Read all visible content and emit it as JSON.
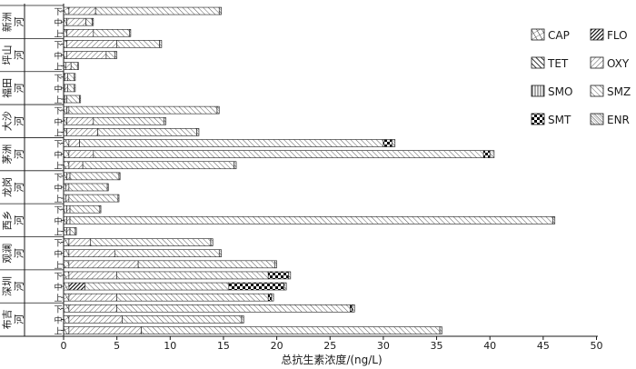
{
  "chart_data": {
    "type": "bar",
    "orientation": "horizontal-stacked",
    "title": "",
    "xlabel": "总抗生素浓度/(ng/L)",
    "ylabel": "",
    "xlim": [
      0,
      50
    ],
    "x_ticks": [
      0,
      5,
      10,
      15,
      20,
      25,
      30,
      35,
      40,
      45,
      50
    ],
    "grid": false,
    "legend_position": "right",
    "legend": [
      "CAP",
      "FLO",
      "TET",
      "OXY",
      "SMO",
      "SMZ",
      "SMT",
      "ENR"
    ],
    "rivers": [
      {
        "name": "新洲河",
        "label_lines": [
          "新洲",
          "河"
        ],
        "sites": [
          "下",
          "中",
          "上"
        ]
      },
      {
        "name": "坪山河",
        "label_lines": [
          "坪山",
          "河"
        ],
        "sites": [
          "下",
          "中",
          "上"
        ]
      },
      {
        "name": "福田河",
        "label_lines": [
          "福田",
          "河"
        ],
        "sites": [
          "下",
          "中",
          "上"
        ]
      },
      {
        "name": "大沙河",
        "label_lines": [
          "大沙",
          "河"
        ],
        "sites": [
          "下",
          "中",
          "上"
        ]
      },
      {
        "name": "茅洲河",
        "label_lines": [
          "茅洲",
          "河"
        ],
        "sites": [
          "下",
          "中",
          "上"
        ]
      },
      {
        "name": "龙岗河",
        "label_lines": [
          "龙岗",
          "河"
        ],
        "sites": [
          "下",
          "中",
          "上"
        ]
      },
      {
        "name": "西乡河",
        "label_lines": [
          "西乡",
          "河"
        ],
        "sites": [
          "下",
          "中",
          "上"
        ]
      },
      {
        "name": "观澜河",
        "label_lines": [
          "观澜",
          "河"
        ],
        "sites": [
          "下",
          "中",
          "上"
        ]
      },
      {
        "name": "深圳河",
        "label_lines": [
          "深圳",
          "河"
        ],
        "sites": [
          "下",
          "中",
          "上"
        ]
      },
      {
        "name": "布吉河",
        "label_lines": [
          "布吉",
          "河"
        ],
        "sites": [
          "下",
          "中",
          "上"
        ]
      }
    ],
    "series": [
      {
        "name": "CAP",
        "values": [
          0.5,
          0.3,
          0.3,
          0.3,
          0.3,
          0.2,
          0.1,
          0.1,
          0.1,
          0.3,
          0.3,
          0.3,
          0.5,
          0.5,
          0.5,
          0.3,
          0.2,
          0.2,
          0.3,
          0.3,
          0.3,
          0.5,
          0.5,
          0.5,
          0.5,
          0.5,
          0.5,
          0.5,
          0.5,
          0.5
        ]
      },
      {
        "name": "FLO",
        "values": [
          0,
          0,
          0,
          0,
          0,
          0,
          0,
          0,
          0,
          0,
          0,
          0,
          0,
          0,
          0,
          0,
          0,
          0,
          0,
          0,
          0,
          0,
          0,
          0,
          0,
          1.5,
          0,
          0,
          0,
          0
        ]
      },
      {
        "name": "TET",
        "values": [
          0,
          0,
          0,
          0,
          0,
          0,
          0,
          0,
          0,
          0,
          0,
          0,
          0,
          0,
          0,
          0,
          0,
          0,
          0,
          0,
          0,
          0,
          0,
          0,
          0,
          0,
          0,
          0,
          0,
          0
        ]
      },
      {
        "name": "OXY",
        "values": [
          2.5,
          1.8,
          2.5,
          4.7,
          3.7,
          0.5,
          0.3,
          0.3,
          0.2,
          0.2,
          2.5,
          2.9,
          1.0,
          2.3,
          1.3,
          0.3,
          0.3,
          0.3,
          0.3,
          0.3,
          0.3,
          2.0,
          4.3,
          6.5,
          4.5,
          0,
          4.5,
          4.5,
          5.0,
          6.8
        ]
      },
      {
        "name": "SMO",
        "values": [
          0,
          0,
          0,
          0,
          0,
          0,
          0,
          0,
          0,
          0,
          0,
          0,
          0,
          0,
          0,
          0,
          0,
          0,
          0,
          0,
          0,
          0,
          0,
          0,
          0,
          0,
          0,
          0,
          0,
          0
        ]
      },
      {
        "name": "SMZ",
        "values": [
          11.6,
          0.6,
          3.4,
          4.0,
          0.8,
          0.6,
          0.6,
          0.6,
          1.2,
          13.9,
          6.6,
          9.3,
          28.5,
          36.6,
          14.2,
          4.6,
          3.6,
          4.6,
          2.8,
          45.3,
          0.5,
          11.3,
          9.8,
          12.8,
          14.2,
          13.5,
          14.2,
          21.9,
          11.2,
          28.0
        ]
      },
      {
        "name": "SMT",
        "values": [
          0,
          0,
          0,
          0,
          0,
          0,
          0,
          0,
          0,
          0,
          0,
          0,
          0.8,
          0.6,
          0,
          0,
          0,
          0,
          0,
          0,
          0,
          0,
          0,
          0,
          1.9,
          5.2,
          0.3,
          0.2,
          0,
          0
        ]
      },
      {
        "name": "ENR",
        "values": [
          0.2,
          0.1,
          0.1,
          0.2,
          0.2,
          0.1,
          0.1,
          0.1,
          0.1,
          0.2,
          0.2,
          0.2,
          0.3,
          0.4,
          0.2,
          0.1,
          0.1,
          0.1,
          0.1,
          0.2,
          0.1,
          0.2,
          0.2,
          0.2,
          0.2,
          0.2,
          0.2,
          0.2,
          0.2,
          0.2
        ]
      }
    ]
  },
  "colors": {
    "ink": "#1a1a1a",
    "background": "#ffffff"
  }
}
